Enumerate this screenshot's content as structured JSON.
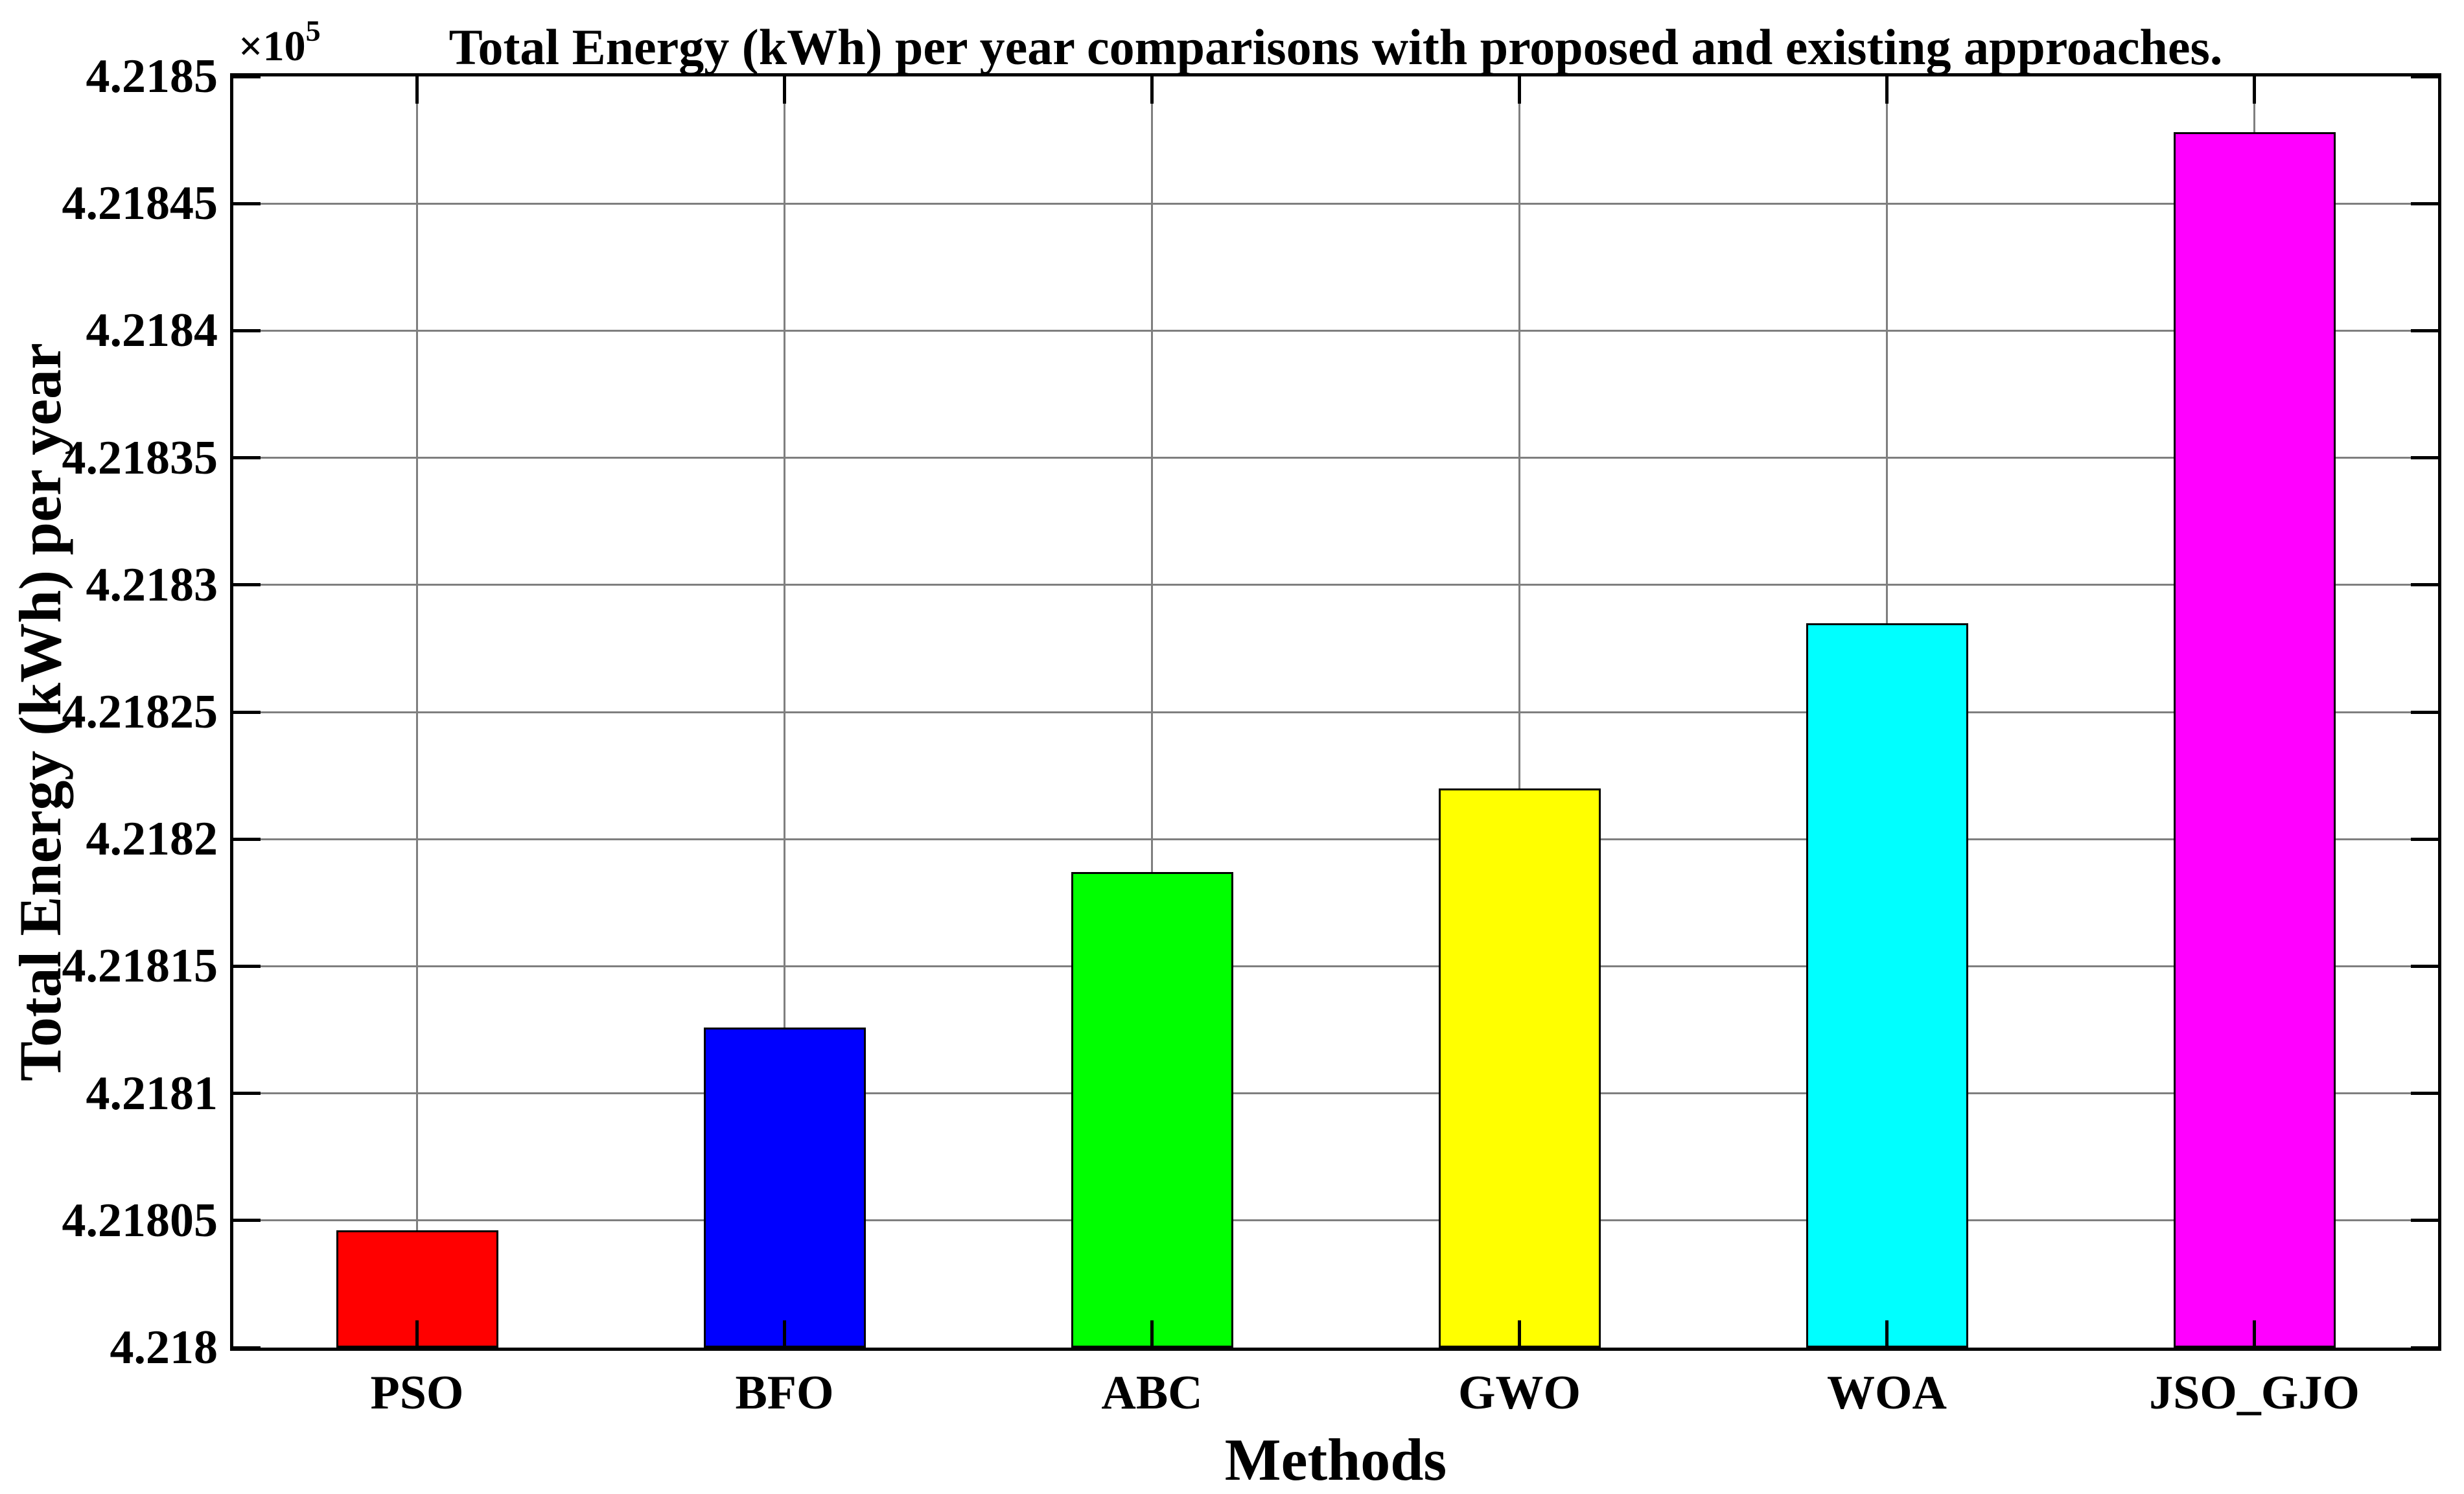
{
  "chart_data": {
    "type": "bar",
    "title": "Total Energy (kWh) per year comparisons with proposed and existing approaches.",
    "xlabel": "Methods",
    "ylabel": "Total Energy (kWh) per year",
    "y_axis_multiplier_text": "×10",
    "y_axis_multiplier_exponent": "5",
    "categories": [
      "PSO",
      "BFO",
      "ABC",
      "GWO",
      "WOA",
      "JSO_GJO"
    ],
    "values": [
      421804.6,
      421812.6,
      421818.7,
      421822.0,
      421828.5,
      421847.8
    ],
    "bar_colors": [
      "#ff0000",
      "#0000ff",
      "#00ff00",
      "#ffff00",
      "#00ffff",
      "#ff00ff"
    ],
    "bar_edge_color": "#000000",
    "ylim": [
      421800,
      421850
    ],
    "yticks": [
      {
        "value": 421800,
        "label": "4.218"
      },
      {
        "value": 421805,
        "label": "4.21805"
      },
      {
        "value": 421810,
        "label": "4.2181"
      },
      {
        "value": 421815,
        "label": "4.21815"
      },
      {
        "value": 421820,
        "label": "4.2182"
      },
      {
        "value": 421825,
        "label": "4.21825"
      },
      {
        "value": 421830,
        "label": "4.2183"
      },
      {
        "value": 421835,
        "label": "4.21835"
      },
      {
        "value": 421840,
        "label": "4.2184"
      },
      {
        "value": 421845,
        "label": "4.21845"
      },
      {
        "value": 421850,
        "label": "4.2185"
      }
    ],
    "grid": true,
    "gridline_color": "#7f7f7f",
    "axis_color": "#000000",
    "background_color": "#ffffff",
    "legend": null
  }
}
